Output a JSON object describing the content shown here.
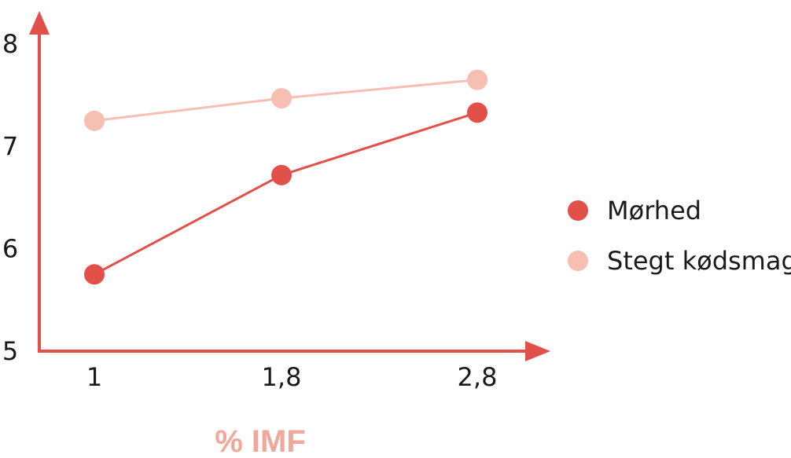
{
  "chart_data": {
    "type": "line",
    "categories": [
      "1",
      "1,8",
      "2,8"
    ],
    "series": [
      {
        "name": "Mørhed",
        "values": [
          5.75,
          6.72,
          7.33
        ],
        "color": "#e2504a"
      },
      {
        "name": "Stegt kødsmag",
        "values": [
          7.25,
          7.47,
          7.65
        ],
        "color": "#f6bfb1"
      }
    ],
    "yticks": [
      "5",
      "6",
      "7",
      "8"
    ],
    "ylim": [
      5,
      8
    ],
    "xlabel": "% IMF",
    "ylabel": "",
    "title": "",
    "grid": false,
    "legend_position": "right",
    "axis_color": "#e2504a"
  }
}
